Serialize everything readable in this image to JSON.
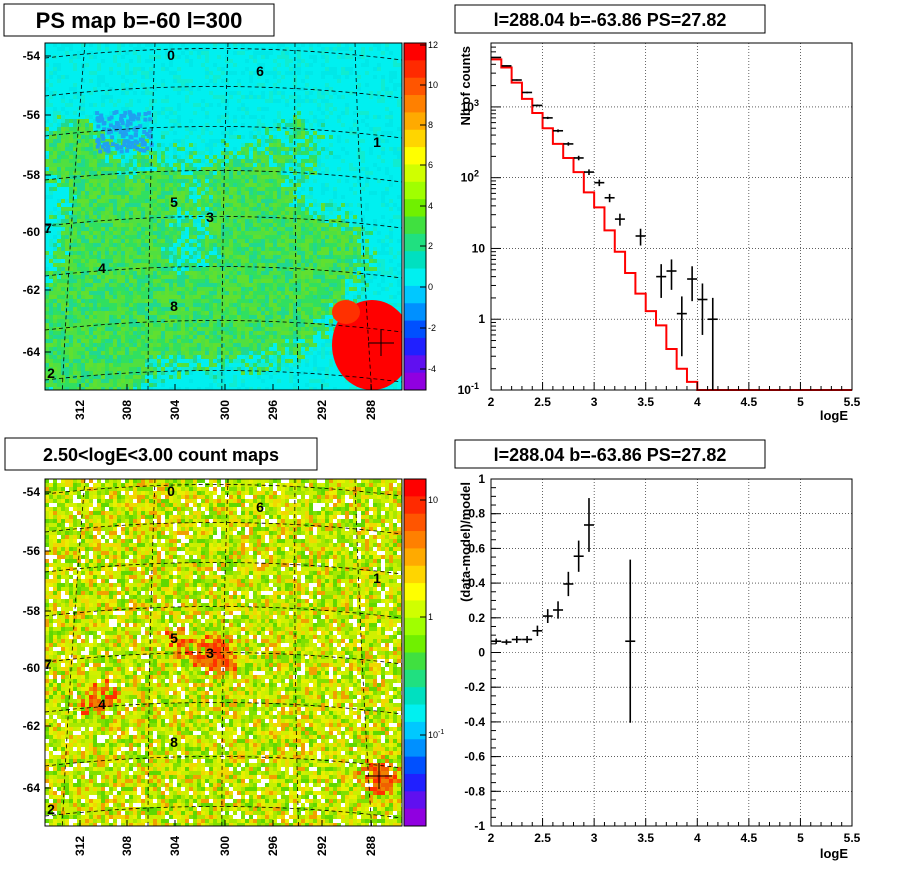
{
  "chart_data": [
    {
      "type": "heatmap",
      "title": "PS map b=-60 l=300",
      "y_ticks": [
        "-54",
        "-56",
        "-58",
        "-60",
        "-62",
        "-64"
      ],
      "x_ticks": [
        "312",
        "308",
        "304",
        "300",
        "296",
        "292",
        "288"
      ],
      "colorbar_ticks": [
        "12",
        "10",
        "8",
        "6",
        "4",
        "2",
        "0",
        "-2",
        "-4"
      ],
      "zlim": [
        -5,
        12
      ],
      "source_labels": [
        "0",
        "6",
        "1",
        "5",
        "3",
        "7",
        "4",
        "8",
        "2"
      ]
    },
    {
      "type": "line",
      "title": "l=288.04 b=-63.86 PS=27.82",
      "xlabel": "logE",
      "ylabel": "Nb of counts",
      "yscale": "log",
      "xlim": [
        2,
        5.5
      ],
      "ylim": [
        0.1,
        8000
      ],
      "x_ticks": [
        "2",
        "2.5",
        "3",
        "3.5",
        "4",
        "4.5",
        "5",
        "5.5"
      ],
      "y_ticks": [
        "10",
        "1",
        "10"
      ],
      "y_tick_exponents": [
        "3",
        "2",
        "-1"
      ],
      "series": [
        {
          "kind": "points",
          "x": [
            2.05,
            2.15,
            2.25,
            2.35,
            2.45,
            2.55,
            2.65,
            2.75,
            2.85,
            2.95,
            3.05,
            3.15,
            3.25,
            3.35,
            3.45,
            3.55,
            3.65,
            3.75,
            3.85,
            3.95,
            4.05,
            4.15
          ],
          "y": [
            5000,
            3800,
            2400,
            1600,
            1050,
            700,
            460,
            300,
            190,
            120,
            85,
            52,
            26,
            0,
            15,
            0,
            4,
            4.8,
            1.2,
            3.7,
            1.9,
            1
          ],
          "err": [
            70,
            60,
            49,
            40,
            32,
            26,
            21,
            17,
            14,
            11,
            9,
            7,
            5,
            0,
            4,
            0,
            2,
            2.2,
            0.9,
            1.9,
            1.3,
            1
          ]
        },
        {
          "kind": "model-histogram",
          "edges": [
            2.0,
            2.1,
            2.2,
            2.3,
            2.4,
            2.5,
            2.6,
            2.7,
            2.8,
            2.9,
            3.0,
            3.1,
            3.2,
            3.3,
            3.4,
            3.5,
            3.6,
            3.7,
            3.8,
            3.9,
            4.0,
            4.1,
            4.2,
            4.3,
            4.4,
            4.5,
            4.6,
            4.7,
            4.8,
            4.9,
            5.0,
            5.1,
            5.2,
            5.3,
            5.4,
            5.5
          ],
          "y": [
            4700,
            3600,
            2200,
            1300,
            820,
            500,
            300,
            190,
            120,
            62,
            38,
            18,
            9,
            4.5,
            2.3,
            1.3,
            0.82,
            0.38,
            0.2,
            0.13,
            0.1,
            0.1,
            0.1,
            0.1,
            0.1,
            0.1,
            0.1,
            0.1,
            0.1,
            0.1,
            0.1,
            0.1,
            0.1,
            0.1,
            0.1
          ]
        }
      ]
    },
    {
      "type": "heatmap",
      "title": "2.50<logE<3.00 count maps",
      "y_ticks": [
        "-54",
        "-56",
        "-58",
        "-60",
        "-62",
        "-64"
      ],
      "x_ticks": [
        "312",
        "308",
        "304",
        "300",
        "296",
        "292",
        "288"
      ],
      "colorbar_ticks": [
        "10",
        "1",
        "10"
      ],
      "colorbar_exponents": [
        "",
        "",
        "-1"
      ],
      "source_labels": [
        "0",
        "6",
        "1",
        "5",
        "3",
        "7",
        "4",
        "8",
        "2"
      ]
    },
    {
      "type": "scatter",
      "title": "l=288.04 b=-63.86 PS=27.82",
      "xlabel": "logE",
      "ylabel": "(data-model)/model",
      "xlim": [
        2,
        5.5
      ],
      "ylim": [
        -1,
        1
      ],
      "x_ticks": [
        "2",
        "2.5",
        "3",
        "3.5",
        "4",
        "4.5",
        "5",
        "5.5"
      ],
      "y_ticks": [
        "1",
        "0.8",
        "0.6",
        "0.4",
        "0.2",
        "0",
        "-0.2",
        "-0.4",
        "-0.6",
        "-0.8",
        "-1"
      ],
      "x": [
        2.05,
        2.15,
        2.25,
        2.35,
        2.45,
        2.55,
        2.65,
        2.75,
        2.85,
        2.95,
        3.35
      ],
      "y": [
        0.065,
        0.06,
        0.075,
        0.075,
        0.125,
        0.21,
        0.245,
        0.395,
        0.555,
        0.735,
        0.065
      ],
      "err": [
        0.015,
        0.015,
        0.02,
        0.02,
        0.03,
        0.04,
        0.05,
        0.07,
        0.09,
        0.155,
        0.47
      ]
    }
  ]
}
